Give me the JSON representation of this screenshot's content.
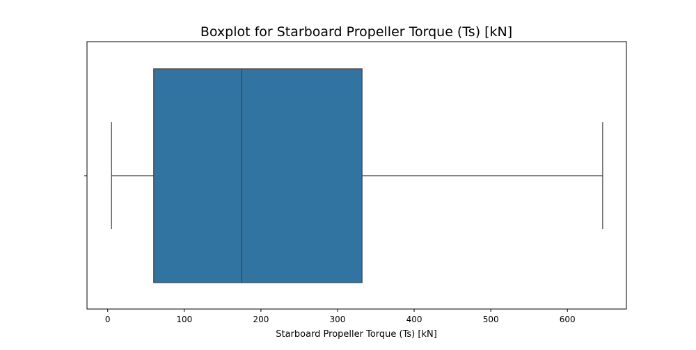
{
  "chart_data": {
    "type": "box",
    "title": "Boxplot for Starboard Propeller Torque (Ts) [kN]",
    "xlabel": "Starboard Propeller Torque (Ts) [kN]",
    "ylabel": "",
    "xlim": [
      -27,
      677
    ],
    "xticks": [
      0,
      100,
      200,
      300,
      400,
      500,
      600
    ],
    "grid": false,
    "box": {
      "whisker_low": 5,
      "q1": 60,
      "median": 175,
      "q3": 332,
      "whisker_high": 646
    }
  },
  "colors": {
    "box_fill": "#3274a1",
    "line": "#3f3f3f",
    "axes": "#000000"
  }
}
